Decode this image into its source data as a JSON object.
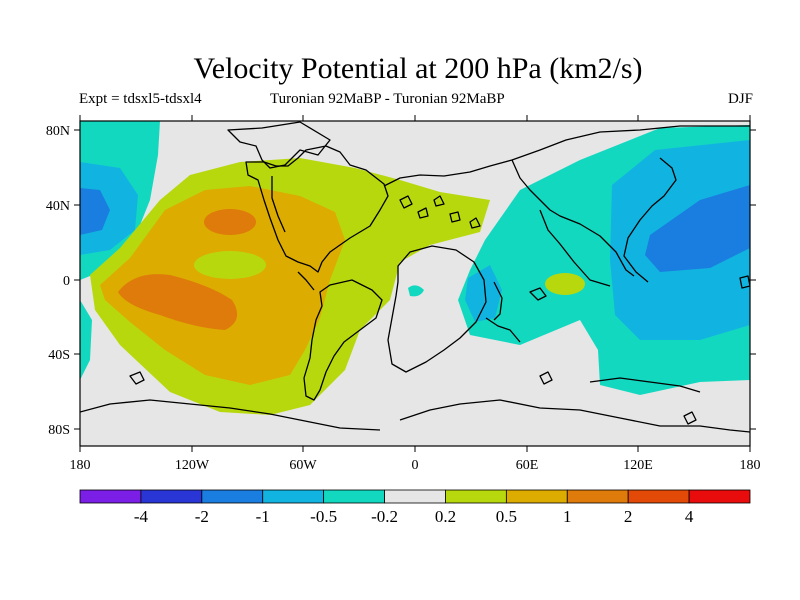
{
  "title": "Velocity Potential at 200 hPa (km2/s)",
  "left_subtitle": "Expt = tdsxl5-tdsxl4",
  "center_subtitle": "Turonian  92MaBP - Turonian  92MaBP",
  "right_subtitle": "DJF",
  "lat_ticks": [
    "80N",
    "40N",
    "0",
    "40S",
    "80S"
  ],
  "lon_ticks": [
    "180",
    "120W",
    "60W",
    "0",
    "60E",
    "120E",
    "180"
  ],
  "colorbar": {
    "labels": [
      "-4",
      "-2",
      "-1",
      "-0.5",
      "-0.2",
      "0.2",
      "0.5",
      "1",
      "2",
      "4"
    ],
    "colors": [
      "#7b1fe6",
      "#2a35d6",
      "#1a7de0",
      "#11b4e0",
      "#13d8c0",
      "#e6e6e6",
      "#b8d80e",
      "#dcac00",
      "#de7b0a",
      "#e34a08",
      "#e80c0c"
    ]
  },
  "chart_data": {
    "type": "heatmap",
    "title": "Velocity Potential at 200 hPa (km2/s)",
    "projection": "cylindrical equidistant",
    "xlim": [
      -180,
      180
    ],
    "ylim": [
      -90,
      90
    ],
    "levels": [
      -4,
      -2,
      -1,
      -0.5,
      -0.2,
      0.2,
      0.5,
      1,
      2,
      4
    ],
    "field_regions": [
      {
        "name": "North Pacific blue lobe",
        "level_range": [
          -1,
          -0.5
        ],
        "center_lon": -170,
        "center_lat": 35
      },
      {
        "name": "East Pacific orange maximum",
        "level_range": [
          1,
          2
        ],
        "center_lon": -120,
        "center_lat": -10
      },
      {
        "name": "Eastern North America orange maximum",
        "level_range": [
          1,
          2
        ],
        "center_lon": -85,
        "center_lat": 30
      },
      {
        "name": "Asia-Pacific blue minimum",
        "level_range": [
          -1,
          -0.5
        ],
        "center_lon": 150,
        "center_lat": 20
      },
      {
        "name": "Indian Ocean green spot",
        "level_range": [
          0.2,
          0.5
        ],
        "center_lon": 75,
        "center_lat": 0
      },
      {
        "name": "Southern Indian/South Atlantic teal region",
        "level_range": [
          -0.5,
          -0.2
        ],
        "center_lon": 60,
        "center_lat": -20
      }
    ]
  }
}
